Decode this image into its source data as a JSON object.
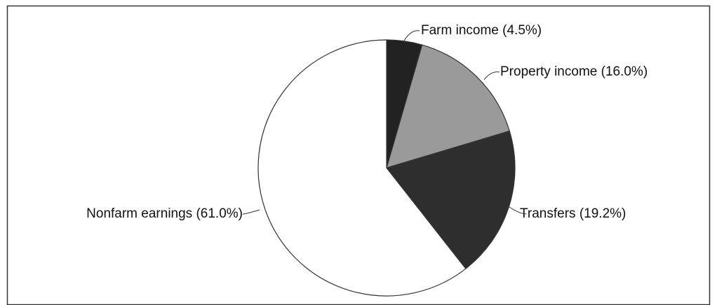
{
  "chart_data": {
    "type": "pie",
    "categories": [
      "Farm income",
      "Property income",
      "Transfers",
      "Nonfarm earnings"
    ],
    "values": [
      4.5,
      16.0,
      19.2,
      61.0
    ],
    "value_labels": [
      "(4.5%)",
      "(16.0%)",
      "(19.2%)",
      "(61.0%)"
    ],
    "colors": [
      "#222222",
      "#9a9a9a",
      "#2e2e2e",
      "#ffffff"
    ]
  }
}
